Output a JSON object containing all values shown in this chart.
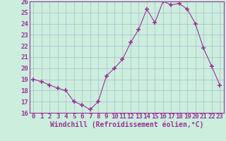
{
  "x": [
    0,
    1,
    2,
    3,
    4,
    5,
    6,
    7,
    8,
    9,
    10,
    11,
    12,
    13,
    14,
    15,
    16,
    17,
    18,
    19,
    20,
    21,
    22,
    23
  ],
  "y": [
    19.0,
    18.8,
    18.5,
    18.2,
    18.0,
    17.0,
    16.7,
    16.3,
    17.0,
    19.3,
    20.0,
    20.8,
    22.3,
    23.5,
    25.3,
    24.1,
    26.0,
    25.7,
    25.8,
    25.3,
    24.0,
    21.8,
    20.2,
    18.5
  ],
  "line_color": "#993399",
  "marker": "+",
  "marker_size": 4,
  "bg_color": "#cceedd",
  "grid_color": "#aabbcc",
  "xlabel": "Windchill (Refroidissement éolien,°C)",
  "xlabel_fontsize": 7,
  "tick_fontsize": 6.5,
  "xlim": [
    -0.5,
    23.5
  ],
  "ylim": [
    16,
    26
  ],
  "yticks": [
    16,
    17,
    18,
    19,
    20,
    21,
    22,
    23,
    24,
    25,
    26
  ],
  "xticks": [
    0,
    1,
    2,
    3,
    4,
    5,
    6,
    7,
    8,
    9,
    10,
    11,
    12,
    13,
    14,
    15,
    16,
    17,
    18,
    19,
    20,
    21,
    22,
    23
  ]
}
